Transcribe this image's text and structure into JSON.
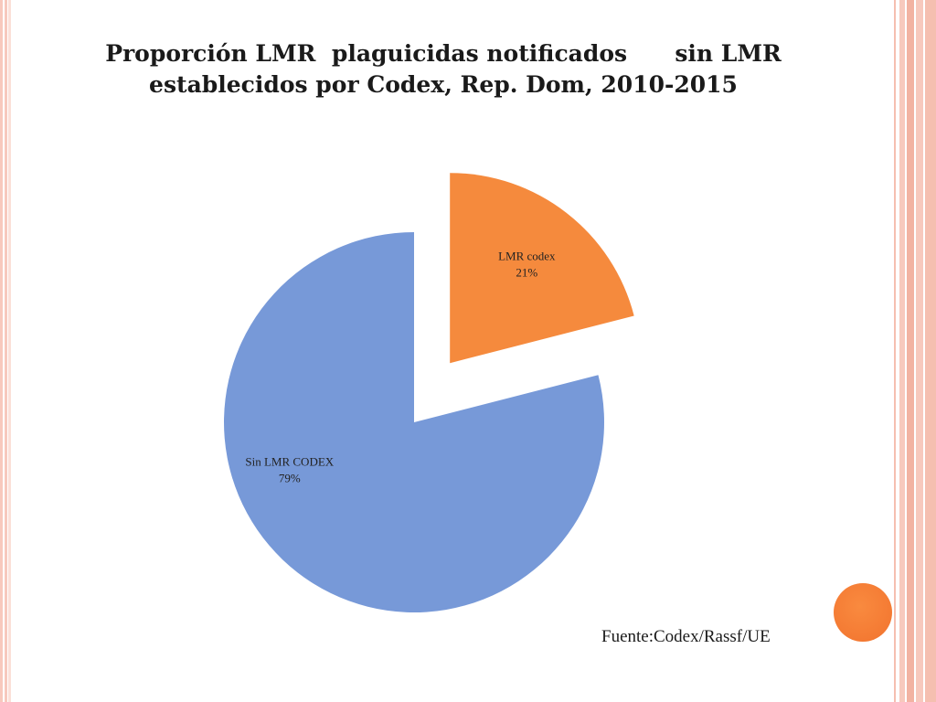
{
  "title": {
    "line1": "Proporción LMR  plaguicidas notificados      sin LMR",
    "line2": "establecidos por Codex, Rep. Dom, 2010-2015"
  },
  "source": "Fuente:Codex/Rassf/UE",
  "chart_data": {
    "type": "pie",
    "title": "Proporción LMR  plaguicidas notificados      sin LMR establecidos por Codex, Rep. Dom, 2010-2015",
    "slices": [
      {
        "name": "LMR codex",
        "value": 21,
        "label": "21%",
        "color": "#f58a3d",
        "exploded": true
      },
      {
        "name": "Sin LMR CODEX",
        "value": 79,
        "label": "79%",
        "color": "#7799d8",
        "exploded": false
      }
    ]
  },
  "colors": {
    "accent_dot": "#f47a33",
    "border": "#f7c9bd"
  }
}
